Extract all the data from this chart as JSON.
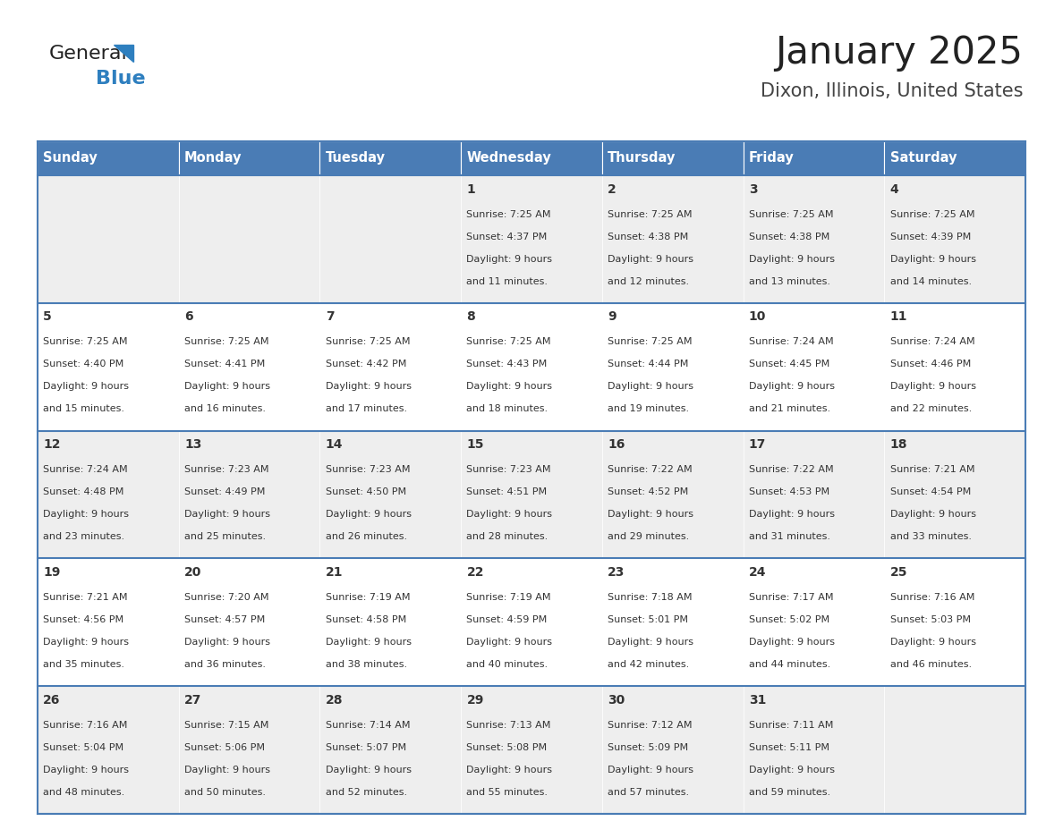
{
  "title": "January 2025",
  "subtitle": "Dixon, Illinois, United States",
  "header_bg_color": "#4A7CB5",
  "header_text_color": "#FFFFFF",
  "day_names": [
    "Sunday",
    "Monday",
    "Tuesday",
    "Wednesday",
    "Thursday",
    "Friday",
    "Saturday"
  ],
  "weeks": [
    [
      {
        "day": "",
        "sunrise": "",
        "sunset": "",
        "daylight": ""
      },
      {
        "day": "",
        "sunrise": "",
        "sunset": "",
        "daylight": ""
      },
      {
        "day": "",
        "sunrise": "",
        "sunset": "",
        "daylight": ""
      },
      {
        "day": "1",
        "sunrise": "7:25 AM",
        "sunset": "4:37 PM",
        "daylight": "9 hours and 11 minutes."
      },
      {
        "day": "2",
        "sunrise": "7:25 AM",
        "sunset": "4:38 PM",
        "daylight": "9 hours and 12 minutes."
      },
      {
        "day": "3",
        "sunrise": "7:25 AM",
        "sunset": "4:38 PM",
        "daylight": "9 hours and 13 minutes."
      },
      {
        "day": "4",
        "sunrise": "7:25 AM",
        "sunset": "4:39 PM",
        "daylight": "9 hours and 14 minutes."
      }
    ],
    [
      {
        "day": "5",
        "sunrise": "7:25 AM",
        "sunset": "4:40 PM",
        "daylight": "9 hours and 15 minutes."
      },
      {
        "day": "6",
        "sunrise": "7:25 AM",
        "sunset": "4:41 PM",
        "daylight": "9 hours and 16 minutes."
      },
      {
        "day": "7",
        "sunrise": "7:25 AM",
        "sunset": "4:42 PM",
        "daylight": "9 hours and 17 minutes."
      },
      {
        "day": "8",
        "sunrise": "7:25 AM",
        "sunset": "4:43 PM",
        "daylight": "9 hours and 18 minutes."
      },
      {
        "day": "9",
        "sunrise": "7:25 AM",
        "sunset": "4:44 PM",
        "daylight": "9 hours and 19 minutes."
      },
      {
        "day": "10",
        "sunrise": "7:24 AM",
        "sunset": "4:45 PM",
        "daylight": "9 hours and 21 minutes."
      },
      {
        "day": "11",
        "sunrise": "7:24 AM",
        "sunset": "4:46 PM",
        "daylight": "9 hours and 22 minutes."
      }
    ],
    [
      {
        "day": "12",
        "sunrise": "7:24 AM",
        "sunset": "4:48 PM",
        "daylight": "9 hours and 23 minutes."
      },
      {
        "day": "13",
        "sunrise": "7:23 AM",
        "sunset": "4:49 PM",
        "daylight": "9 hours and 25 minutes."
      },
      {
        "day": "14",
        "sunrise": "7:23 AM",
        "sunset": "4:50 PM",
        "daylight": "9 hours and 26 minutes."
      },
      {
        "day": "15",
        "sunrise": "7:23 AM",
        "sunset": "4:51 PM",
        "daylight": "9 hours and 28 minutes."
      },
      {
        "day": "16",
        "sunrise": "7:22 AM",
        "sunset": "4:52 PM",
        "daylight": "9 hours and 29 minutes."
      },
      {
        "day": "17",
        "sunrise": "7:22 AM",
        "sunset": "4:53 PM",
        "daylight": "9 hours and 31 minutes."
      },
      {
        "day": "18",
        "sunrise": "7:21 AM",
        "sunset": "4:54 PM",
        "daylight": "9 hours and 33 minutes."
      }
    ],
    [
      {
        "day": "19",
        "sunrise": "7:21 AM",
        "sunset": "4:56 PM",
        "daylight": "9 hours and 35 minutes."
      },
      {
        "day": "20",
        "sunrise": "7:20 AM",
        "sunset": "4:57 PM",
        "daylight": "9 hours and 36 minutes."
      },
      {
        "day": "21",
        "sunrise": "7:19 AM",
        "sunset": "4:58 PM",
        "daylight": "9 hours and 38 minutes."
      },
      {
        "day": "22",
        "sunrise": "7:19 AM",
        "sunset": "4:59 PM",
        "daylight": "9 hours and 40 minutes."
      },
      {
        "day": "23",
        "sunrise": "7:18 AM",
        "sunset": "5:01 PM",
        "daylight": "9 hours and 42 minutes."
      },
      {
        "day": "24",
        "sunrise": "7:17 AM",
        "sunset": "5:02 PM",
        "daylight": "9 hours and 44 minutes."
      },
      {
        "day": "25",
        "sunrise": "7:16 AM",
        "sunset": "5:03 PM",
        "daylight": "9 hours and 46 minutes."
      }
    ],
    [
      {
        "day": "26",
        "sunrise": "7:16 AM",
        "sunset": "5:04 PM",
        "daylight": "9 hours and 48 minutes."
      },
      {
        "day": "27",
        "sunrise": "7:15 AM",
        "sunset": "5:06 PM",
        "daylight": "9 hours and 50 minutes."
      },
      {
        "day": "28",
        "sunrise": "7:14 AM",
        "sunset": "5:07 PM",
        "daylight": "9 hours and 52 minutes."
      },
      {
        "day": "29",
        "sunrise": "7:13 AM",
        "sunset": "5:08 PM",
        "daylight": "9 hours and 55 minutes."
      },
      {
        "day": "30",
        "sunrise": "7:12 AM",
        "sunset": "5:09 PM",
        "daylight": "9 hours and 57 minutes."
      },
      {
        "day": "31",
        "sunrise": "7:11 AM",
        "sunset": "5:11 PM",
        "daylight": "9 hours and 59 minutes."
      },
      {
        "day": "",
        "sunrise": "",
        "sunset": "",
        "daylight": ""
      }
    ]
  ],
  "cell_bg_color": "#FFFFFF",
  "alt_cell_bg_color": "#EEEEEE",
  "border_color": "#4A7CB5",
  "text_color": "#333333",
  "day_number_fontsize": 10,
  "info_fontsize": 8,
  "header_fontsize": 10.5,
  "title_fontsize": 30,
  "subtitle_fontsize": 15
}
